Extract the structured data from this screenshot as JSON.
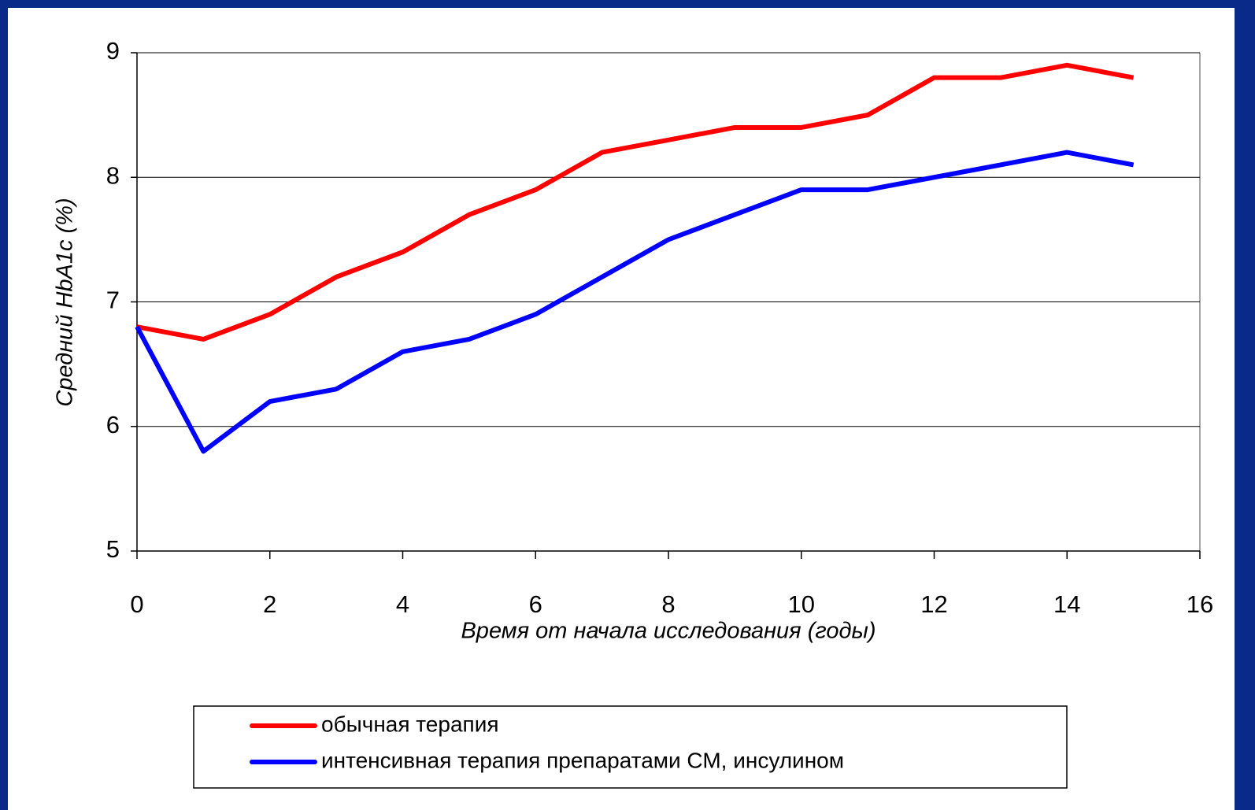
{
  "chart_data": {
    "type": "line",
    "x_label": "Время от начала исследования (годы)",
    "y_label": "Средний HbA1c (%)",
    "x": [
      0,
      1,
      2,
      3,
      4,
      5,
      6,
      7,
      8,
      9,
      10,
      11,
      12,
      13,
      14,
      15
    ],
    "series": [
      {
        "name": "обычная терапия",
        "color": "#ff0000",
        "values": [
          6.8,
          6.7,
          6.9,
          7.2,
          7.4,
          7.7,
          7.9,
          8.2,
          8.3,
          8.4,
          8.4,
          8.5,
          8.8,
          8.8,
          8.9,
          8.8
        ]
      },
      {
        "name": "интенсивная терапия препаратами СМ, инсулином",
        "color": "#0000ff",
        "values": [
          6.8,
          5.8,
          6.2,
          6.3,
          6.6,
          6.7,
          6.9,
          7.2,
          7.5,
          7.7,
          7.9,
          7.9,
          8.0,
          8.1,
          8.2,
          8.1
        ]
      }
    ],
    "xlim": [
      0,
      16
    ],
    "xticks": [
      0,
      2,
      4,
      6,
      8,
      10,
      12,
      14,
      16
    ],
    "ylim": [
      5,
      9
    ],
    "yticks": [
      5,
      6,
      7,
      8,
      9
    ],
    "grid": true,
    "legend": "bottom"
  }
}
